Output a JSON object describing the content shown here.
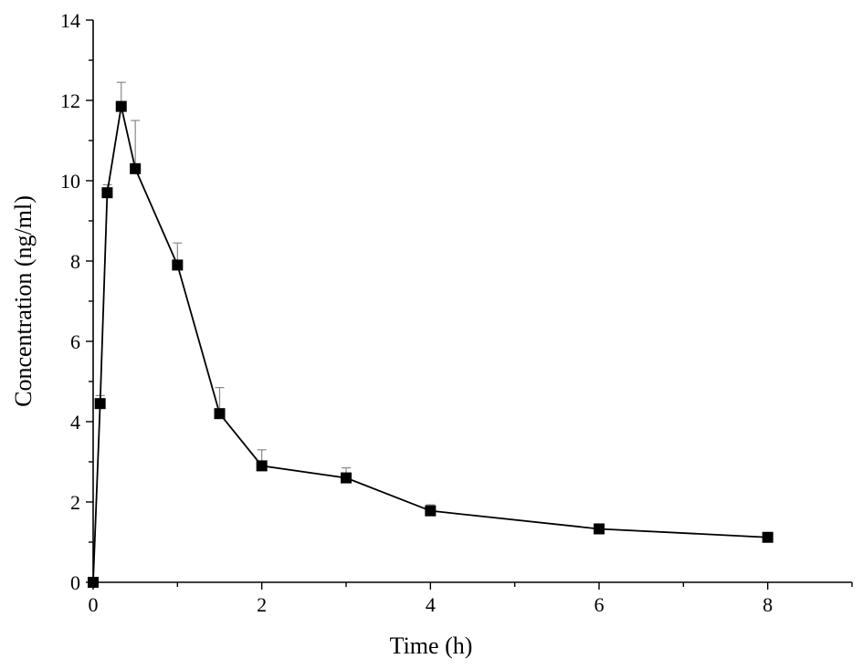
{
  "chart_data": {
    "type": "line",
    "xlabel": "Time (h)",
    "ylabel": "Concentration (ng/ml)",
    "xlim": [
      0,
      9
    ],
    "ylim": [
      0,
      14
    ],
    "x_ticks": [
      0,
      2,
      4,
      6,
      8
    ],
    "y_ticks": [
      0,
      2,
      4,
      6,
      8,
      10,
      12,
      14
    ],
    "grid": false,
    "legend": "none",
    "marker": "square",
    "colors": {
      "line": "#000000",
      "marker": "#000000",
      "error_bar": "#888888"
    },
    "series": [
      {
        "x": [
          0,
          0.083,
          0.167,
          0.333,
          0.5,
          1,
          1.5,
          2,
          3,
          4,
          6,
          8
        ],
        "y": [
          0,
          4.45,
          9.7,
          11.85,
          10.3,
          7.9,
          4.2,
          2.9,
          2.6,
          1.78,
          1.33,
          1.12
        ],
        "error_upper": [
          0,
          0.2,
          0.2,
          0.6,
          1.2,
          0.55,
          0.65,
          0.4,
          0.25,
          0.15,
          0.05,
          0.05
        ]
      }
    ]
  }
}
